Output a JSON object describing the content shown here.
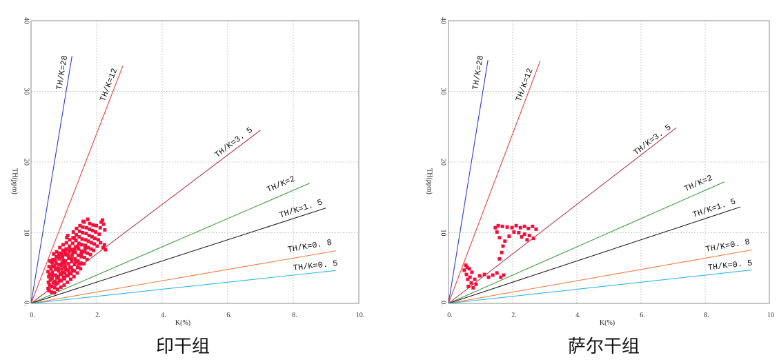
{
  "chart_data": [
    {
      "type": "scatter",
      "caption": "印干组",
      "xlabel": "K(%)",
      "ylabel": "TH(ppm)",
      "xlim": [
        0,
        10
      ],
      "ylim": [
        0,
        40
      ],
      "xticks": [
        0,
        2,
        4,
        6,
        8,
        10
      ],
      "xtick_labels": [
        "0.",
        "2.",
        "4.",
        "6.",
        "8.",
        "10."
      ],
      "yticks": [
        0,
        10,
        20,
        30,
        40
      ],
      "ytick_labels": [
        "0.",
        "10",
        "20",
        "30",
        "40"
      ],
      "grid": true,
      "ratio_lines": [
        {
          "name": "TH/K=28",
          "ratio": 28,
          "k_end": 1.25,
          "color": "#2c3ad1"
        },
        {
          "name": "TH/K=12",
          "ratio": 12,
          "k_end": 2.8,
          "color": "#e8413b"
        },
        {
          "name": "TH/K=3. 5",
          "ratio": 3.5,
          "k_end": 7.0,
          "color": "#b53a4e"
        },
        {
          "name": "TH/K=2",
          "ratio": 2,
          "k_end": 8.5,
          "color": "#3a9a3a"
        },
        {
          "name": "TH/K=1. 5",
          "ratio": 1.5,
          "k_end": 9.0,
          "color": "#1e1e1e"
        },
        {
          "name": "TH/K=0. 8",
          "ratio": 0.8,
          "k_end": 9.3,
          "color": "#f07a3e"
        },
        {
          "name": "TH/K=0. 5",
          "ratio": 0.5,
          "k_end": 9.3,
          "color": "#2fb8d9"
        }
      ],
      "series": [
        {
          "color": "#f2103a",
          "points": [
            [
              0.52,
              2.1
            ],
            [
              0.53,
              3.0
            ],
            [
              0.54,
              3.8
            ],
            [
              0.52,
              4.5
            ],
            [
              0.55,
              5.2
            ],
            [
              0.56,
              2.6
            ],
            [
              0.58,
              6.0
            ],
            [
              0.57,
              4.1
            ],
            [
              0.59,
              3.3
            ],
            [
              0.55,
              1.8
            ],
            [
              0.62,
              1.6
            ],
            [
              0.63,
              2.4
            ],
            [
              0.64,
              3.5
            ],
            [
              0.65,
              4.4
            ],
            [
              0.66,
              5.3
            ],
            [
              0.67,
              6.2
            ],
            [
              0.68,
              2.9
            ],
            [
              0.69,
              7.0
            ],
            [
              0.61,
              4.9
            ],
            [
              0.66,
              3.9
            ],
            [
              0.64,
              5.8
            ],
            [
              0.71,
              1.5
            ],
            [
              0.72,
              2.2
            ],
            [
              0.73,
              3.1
            ],
            [
              0.74,
              4.0
            ],
            [
              0.75,
              4.8
            ],
            [
              0.76,
              5.7
            ],
            [
              0.77,
              6.6
            ],
            [
              0.78,
              7.3
            ],
            [
              0.79,
              3.6
            ],
            [
              0.72,
              5.2
            ],
            [
              0.76,
              2.7
            ],
            [
              0.74,
              6.1
            ],
            [
              0.81,
              2.0
            ],
            [
              0.82,
              2.9
            ],
            [
              0.83,
              3.8
            ],
            [
              0.84,
              4.6
            ],
            [
              0.85,
              5.5
            ],
            [
              0.86,
              6.3
            ],
            [
              0.87,
              7.1
            ],
            [
              0.88,
              7.9
            ],
            [
              0.89,
              4.2
            ],
            [
              0.83,
              5.0
            ],
            [
              0.87,
              3.3
            ],
            [
              0.85,
              6.8
            ],
            [
              0.91,
              2.3
            ],
            [
              0.92,
              3.2
            ],
            [
              0.93,
              4.1
            ],
            [
              0.94,
              4.9
            ],
            [
              0.95,
              5.8
            ],
            [
              0.96,
              6.6
            ],
            [
              0.97,
              7.5
            ],
            [
              0.98,
              8.3
            ],
            [
              0.99,
              3.7
            ],
            [
              0.93,
              5.4
            ],
            [
              0.96,
              4.4
            ],
            [
              0.94,
              7.0
            ],
            [
              0.98,
              6.1
            ],
            [
              1.01,
              2.6
            ],
            [
              1.02,
              3.5
            ],
            [
              1.03,
              4.3
            ],
            [
              1.04,
              5.2
            ],
            [
              1.05,
              6.0
            ],
            [
              1.06,
              6.9
            ],
            [
              1.07,
              7.7
            ],
            [
              1.08,
              8.6
            ],
            [
              1.09,
              9.3
            ],
            [
              1.03,
              5.7
            ],
            [
              1.06,
              4.8
            ],
            [
              1.08,
              3.9
            ],
            [
              1.04,
              7.3
            ],
            [
              1.11,
              3.0
            ],
            [
              1.12,
              3.9
            ],
            [
              1.13,
              4.7
            ],
            [
              1.14,
              5.6
            ],
            [
              1.15,
              6.4
            ],
            [
              1.16,
              7.3
            ],
            [
              1.17,
              8.1
            ],
            [
              1.18,
              9.0
            ],
            [
              1.19,
              5.1
            ],
            [
              1.13,
              6.8
            ],
            [
              1.16,
              4.3
            ],
            [
              1.18,
              7.6
            ],
            [
              1.12,
              9.6
            ],
            [
              1.21,
              3.4
            ],
            [
              1.22,
              4.2
            ],
            [
              1.23,
              5.1
            ],
            [
              1.24,
              5.9
            ],
            [
              1.25,
              6.8
            ],
            [
              1.26,
              7.6
            ],
            [
              1.27,
              8.5
            ],
            [
              1.28,
              9.3
            ],
            [
              1.29,
              10.1
            ],
            [
              1.23,
              6.3
            ],
            [
              1.26,
              4.7
            ],
            [
              1.28,
              7.2
            ],
            [
              1.31,
              3.8
            ],
            [
              1.32,
              4.6
            ],
            [
              1.33,
              5.5
            ],
            [
              1.34,
              6.3
            ],
            [
              1.35,
              7.2
            ],
            [
              1.36,
              8.0
            ],
            [
              1.37,
              8.9
            ],
            [
              1.38,
              9.7
            ],
            [
              1.39,
              10.6
            ],
            [
              1.33,
              7.7
            ],
            [
              1.36,
              5.9
            ],
            [
              1.32,
              9.2
            ],
            [
              1.41,
              4.3
            ],
            [
              1.42,
              5.1
            ],
            [
              1.43,
              6.0
            ],
            [
              1.44,
              6.8
            ],
            [
              1.45,
              7.7
            ],
            [
              1.46,
              8.5
            ],
            [
              1.47,
              9.4
            ],
            [
              1.48,
              10.2
            ],
            [
              1.49,
              11.0
            ],
            [
              1.43,
              8.1
            ],
            [
              1.46,
              5.6
            ],
            [
              1.51,
              4.9
            ],
            [
              1.52,
              5.7
            ],
            [
              1.53,
              6.6
            ],
            [
              1.54,
              7.4
            ],
            [
              1.55,
              8.3
            ],
            [
              1.56,
              9.1
            ],
            [
              1.57,
              10.0
            ],
            [
              1.58,
              10.8
            ],
            [
              1.59,
              11.6
            ],
            [
              1.53,
              7.0
            ],
            [
              1.61,
              5.6
            ],
            [
              1.63,
              6.5
            ],
            [
              1.64,
              7.3
            ],
            [
              1.66,
              8.2
            ],
            [
              1.67,
              9.0
            ],
            [
              1.68,
              9.9
            ],
            [
              1.69,
              10.7
            ],
            [
              1.62,
              11.5
            ],
            [
              1.65,
              7.8
            ],
            [
              1.71,
              6.2
            ],
            [
              1.72,
              7.1
            ],
            [
              1.74,
              7.9
            ],
            [
              1.75,
              8.8
            ],
            [
              1.77,
              9.6
            ],
            [
              1.78,
              10.5
            ],
            [
              1.79,
              11.3
            ],
            [
              1.73,
              11.9
            ],
            [
              1.81,
              6.9
            ],
            [
              1.83,
              7.7
            ],
            [
              1.84,
              8.6
            ],
            [
              1.86,
              9.4
            ],
            [
              1.88,
              10.3
            ],
            [
              1.89,
              11.1
            ],
            [
              1.91,
              7.5
            ],
            [
              1.93,
              8.4
            ],
            [
              1.95,
              9.2
            ],
            [
              1.97,
              10.1
            ],
            [
              1.99,
              11.0
            ],
            [
              2.02,
              8.1
            ],
            [
              2.05,
              9.0
            ],
            [
              2.08,
              9.8
            ],
            [
              2.11,
              10.7
            ],
            [
              2.14,
              11.5
            ],
            [
              2.18,
              11.8
            ],
            [
              2.21,
              11.2
            ],
            [
              2.24,
              8.3
            ],
            [
              2.27,
              7.6
            ],
            [
              2.2,
              7.9
            ],
            [
              2.12,
              8.6
            ],
            [
              2.25,
              10.4
            ]
          ]
        }
      ]
    },
    {
      "type": "scatter",
      "caption": "萨尔干组",
      "xlabel": "K(%)",
      "ylabel": "TH(ppm)",
      "xlim": [
        0,
        10
      ],
      "ylim": [
        0,
        40
      ],
      "xticks": [
        0,
        2,
        4,
        6,
        8,
        10
      ],
      "xtick_labels": [
        "0.",
        "2.",
        "4.",
        "6.",
        "8.",
        "10"
      ],
      "yticks": [
        0,
        10,
        20,
        30,
        40
      ],
      "ytick_labels": [
        "0.",
        "10",
        "20",
        "30",
        "40"
      ],
      "grid": true,
      "ratio_lines": [
        {
          "name": "TH/K=28",
          "ratio": 28,
          "k_end": 1.23,
          "color": "#2c3ad1"
        },
        {
          "name": "TH/K=12",
          "ratio": 12,
          "k_end": 2.86,
          "color": "#e8413b"
        },
        {
          "name": "TH/K=3. 5",
          "ratio": 3.5,
          "k_end": 7.1,
          "color": "#b53a4e"
        },
        {
          "name": "TH/K=2",
          "ratio": 2,
          "k_end": 8.6,
          "color": "#3a9a3a"
        },
        {
          "name": "TH/K=1. 5",
          "ratio": 1.5,
          "k_end": 9.1,
          "color": "#1e1e1e"
        },
        {
          "name": "TH/K=0. 8",
          "ratio": 0.8,
          "k_end": 9.45,
          "color": "#f07a3e"
        },
        {
          "name": "TH/K=0. 5",
          "ratio": 0.5,
          "k_end": 9.45,
          "color": "#2fb8d9"
        }
      ],
      "series": [
        {
          "color": "#f2103a",
          "points": [
            [
              0.54,
              5.4
            ],
            [
              0.65,
              4.9
            ],
            [
              0.56,
              4.1
            ],
            [
              0.71,
              2.9
            ],
            [
              0.77,
              2.2
            ],
            [
              0.86,
              2.7
            ],
            [
              0.6,
              3.4
            ],
            [
              0.73,
              4.4
            ],
            [
              0.49,
              4.7
            ],
            [
              0.82,
              3.4
            ],
            [
              0.67,
              3.7
            ],
            [
              0.62,
              2.4
            ],
            [
              0.58,
              5.1
            ],
            [
              0.97,
              3.9
            ],
            [
              1.12,
              4.1
            ],
            [
              1.25,
              3.7
            ],
            [
              1.38,
              4.0
            ],
            [
              1.51,
              4.3
            ],
            [
              1.63,
              3.7
            ],
            [
              1.72,
              4.0
            ],
            [
              1.59,
              6.3
            ],
            [
              1.66,
              7.2
            ],
            [
              1.7,
              8.1
            ],
            [
              1.76,
              8.8
            ],
            [
              1.59,
              9.3
            ],
            [
              1.89,
              9.5
            ],
            [
              1.46,
              10.7
            ],
            [
              1.55,
              11.0
            ],
            [
              1.68,
              10.9
            ],
            [
              1.83,
              10.8
            ],
            [
              1.98,
              10.7
            ],
            [
              2.11,
              11.0
            ],
            [
              2.24,
              10.7
            ],
            [
              2.37,
              10.9
            ],
            [
              2.49,
              10.6
            ],
            [
              2.62,
              10.9
            ],
            [
              2.73,
              10.5
            ],
            [
              1.51,
              10.1
            ],
            [
              2.04,
              10.1
            ],
            [
              2.19,
              10.0
            ],
            [
              2.37,
              9.8
            ],
            [
              2.52,
              9.6
            ],
            [
              2.65,
              9.2
            ],
            [
              2.45,
              9.0
            ],
            [
              2.28,
              9.4
            ]
          ]
        }
      ]
    }
  ]
}
